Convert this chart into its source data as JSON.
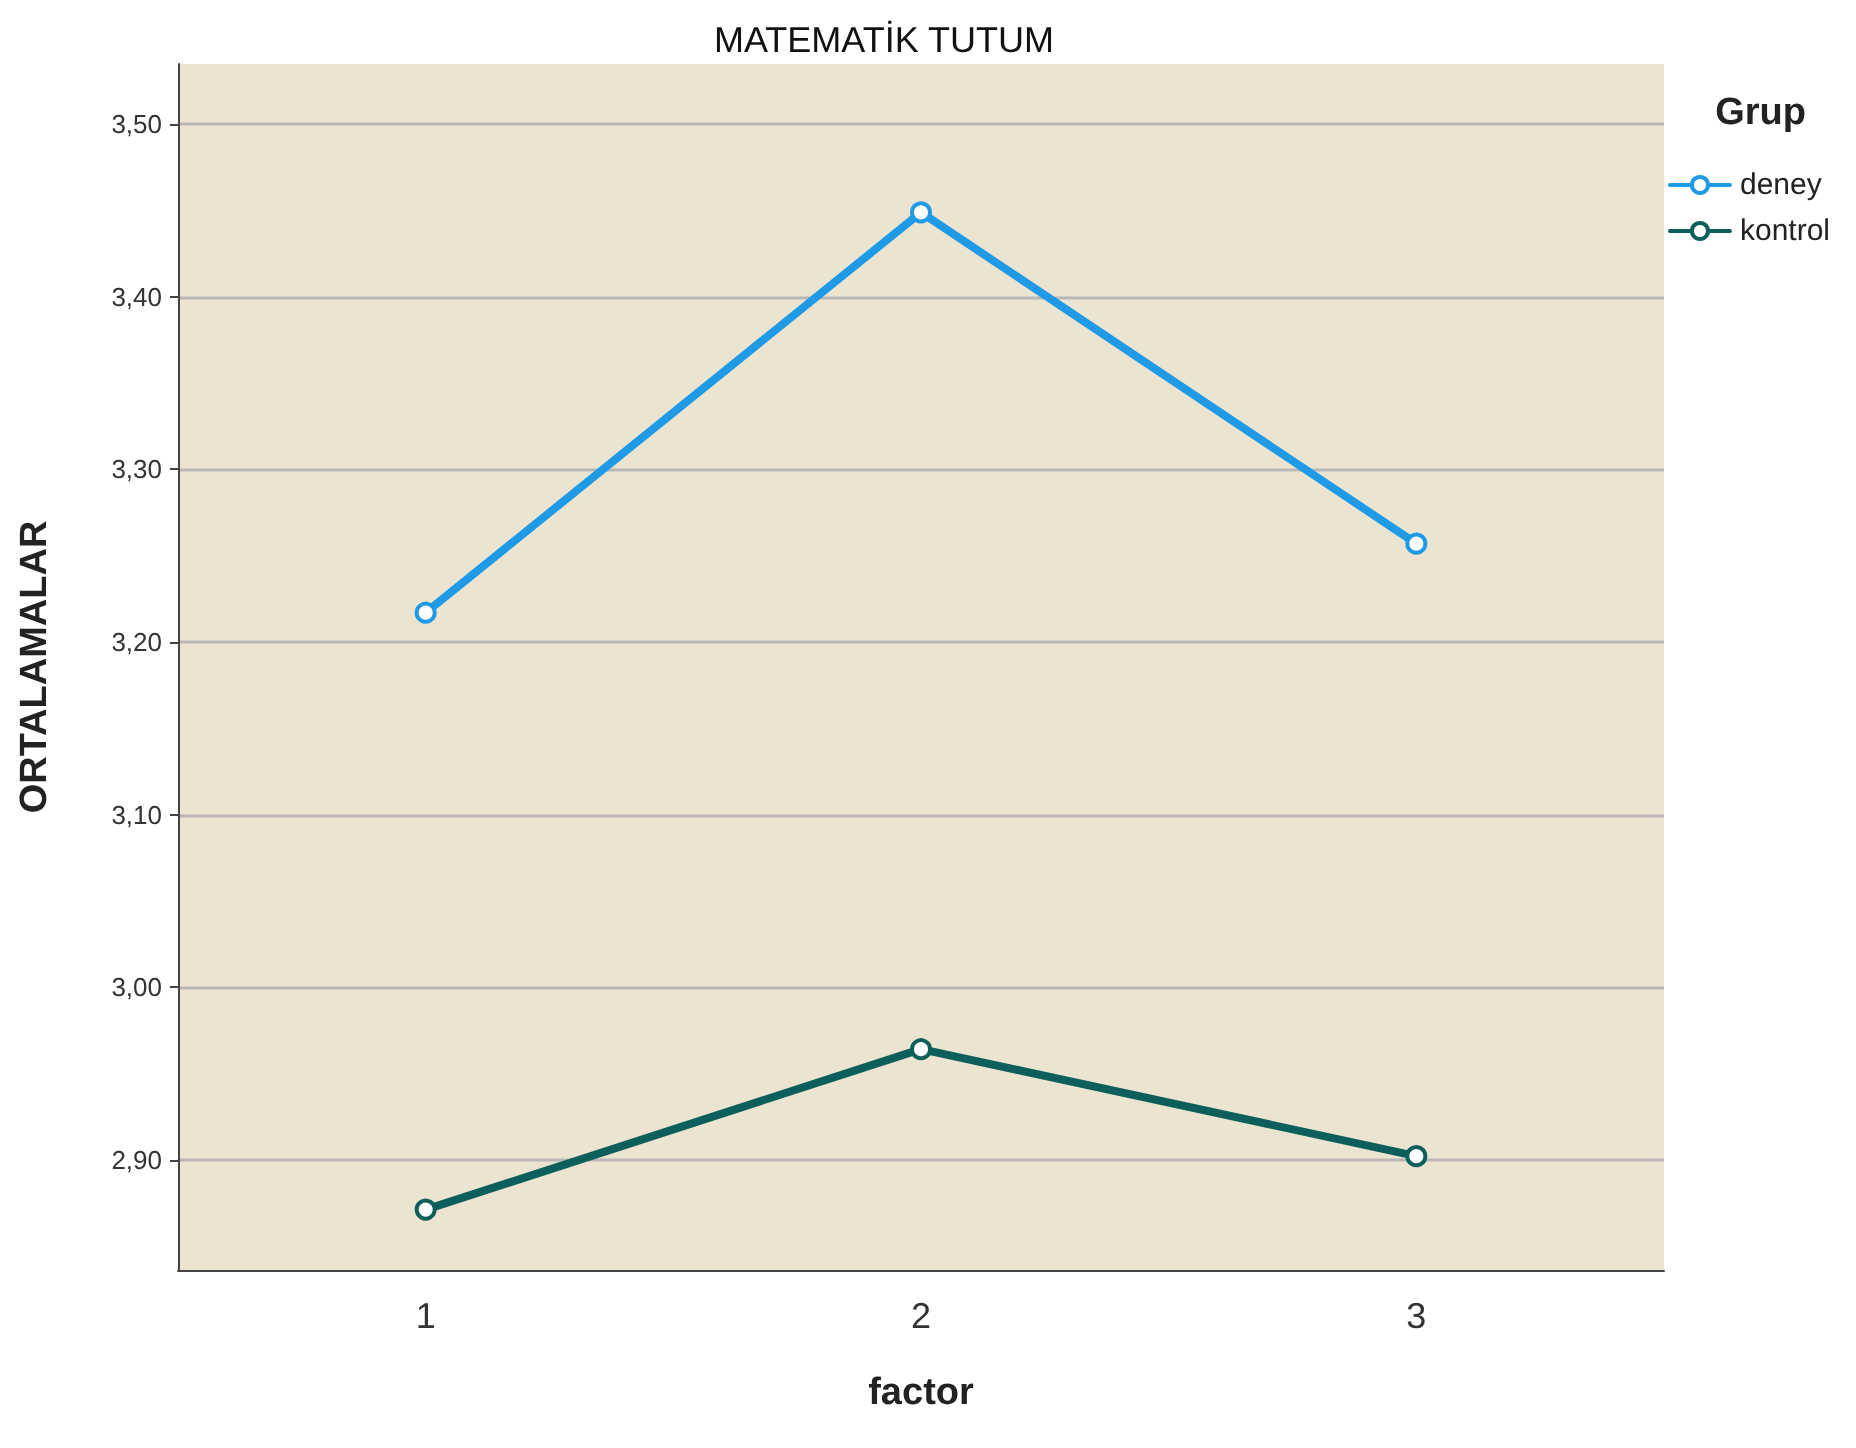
{
  "chart_data": {
    "type": "line",
    "title": "MATEMATİK TUTUM",
    "xlabel": "factor",
    "ylabel": "ORTALAMALAR",
    "legend_title": "Grup",
    "categories": [
      "1",
      "2",
      "3"
    ],
    "series": [
      {
        "name": "deney",
        "color": "#1f9ae6",
        "values": [
          3.217,
          3.449,
          3.257
        ]
      },
      {
        "name": "kontrol",
        "color": "#0c5f5b",
        "values": [
          2.871,
          2.964,
          2.902
        ]
      }
    ],
    "ylim": [
      2.836,
      3.535
    ],
    "yticks": [
      {
        "value": 2.9,
        "label": "2,90"
      },
      {
        "value": 3.0,
        "label": "3,00"
      },
      {
        "value": 3.1,
        "label": "3,10"
      },
      {
        "value": 3.2,
        "label": "3,20"
      },
      {
        "value": 3.3,
        "label": "3,30"
      },
      {
        "value": 3.4,
        "label": "3,40"
      },
      {
        "value": 3.5,
        "label": "3,50"
      }
    ],
    "grid": "y",
    "legend": "top right",
    "marker": "circle",
    "line_style": "solid"
  }
}
